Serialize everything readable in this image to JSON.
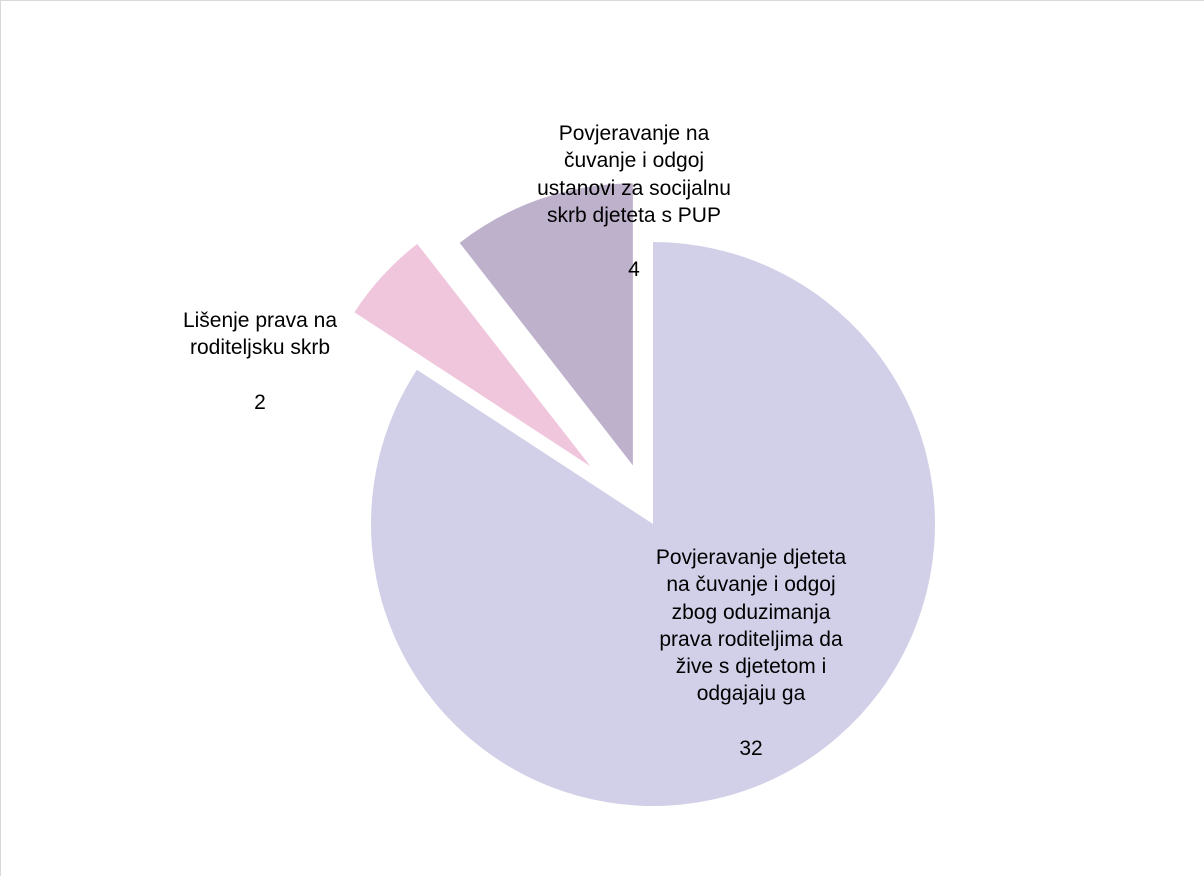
{
  "chart_data": {
    "type": "pie",
    "title": "",
    "exploded": true,
    "slices": [
      {
        "label": "Povjeravanje djeteta\nna čuvanje i odgoj\nzbog oduzimanja\nprava roditeljima da\nžive s djetetom i\nodgajaju ga",
        "value": 32,
        "value_text": "32",
        "color": "#d2d0e8"
      },
      {
        "label": "Lišenje prava na\nroditeljsku skrb",
        "value": 2,
        "value_text": "2",
        "color": "#efc6dc"
      },
      {
        "label": "Povjeravanje na\nčuvanje i odgoj\nustanovi za socijalnu\nskrb djeteta s PUP",
        "value": 4,
        "value_text": "4",
        "color": "#bdb1cc"
      }
    ]
  }
}
